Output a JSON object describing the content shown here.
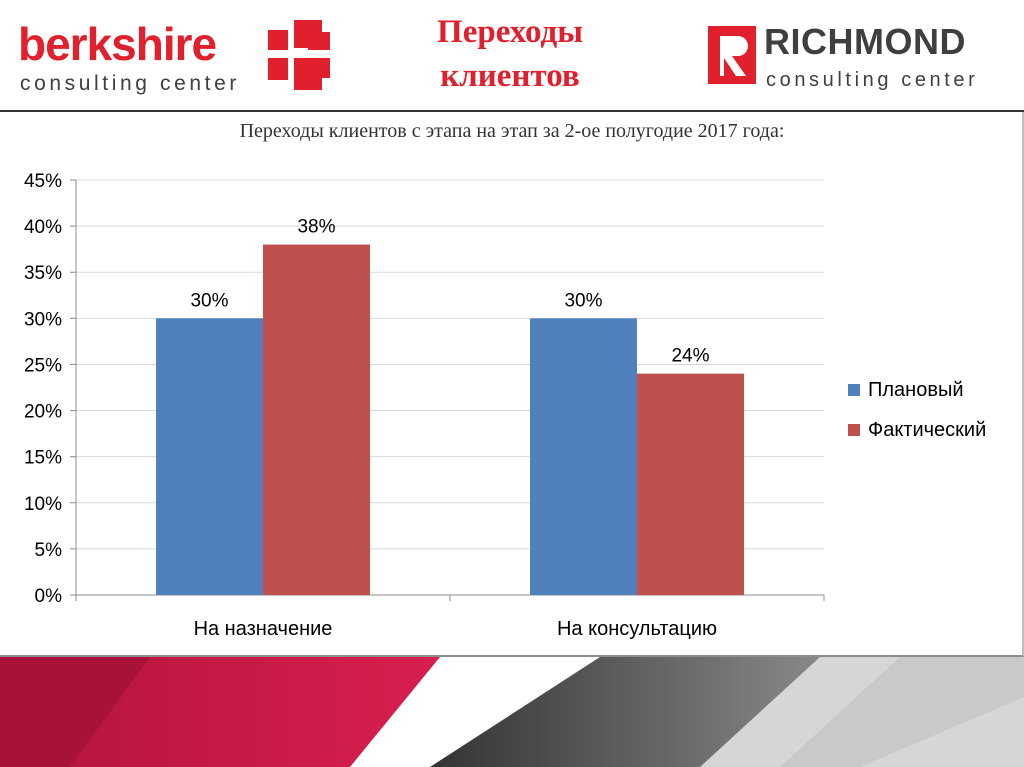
{
  "header": {
    "left_logo": {
      "name": "berkshire",
      "tagline": "consulting center"
    },
    "right_logo": {
      "name": "RICHMOND",
      "tagline": "consulting center"
    },
    "title_lines": [
      "Переходы",
      "клиентов"
    ]
  },
  "colors": {
    "accent": "#e0202d",
    "plan": "#4f81bd",
    "fact": "#c0504d",
    "logo_dark": "#3f3f3f"
  },
  "chart_data": {
    "type": "bar",
    "title": "Переходы клиентов с этапа на этап за 2-ое полугодие 2017 года:",
    "categories": [
      "На назначение",
      "На консультацию"
    ],
    "series": [
      {
        "name": "Плановый",
        "values": [
          30,
          30
        ],
        "labels": [
          "30%",
          "30%"
        ],
        "color": "#4f81bd"
      },
      {
        "name": "Фактический",
        "values": [
          38,
          24
        ],
        "labels": [
          "38%",
          "24%"
        ],
        "color": "#c0504d"
      }
    ],
    "ylim": [
      0,
      45
    ],
    "yticks": [
      "0%",
      "5%",
      "10%",
      "15%",
      "20%",
      "25%",
      "30%",
      "35%",
      "40%",
      "45%"
    ],
    "grid": true,
    "legend_position": "right"
  }
}
